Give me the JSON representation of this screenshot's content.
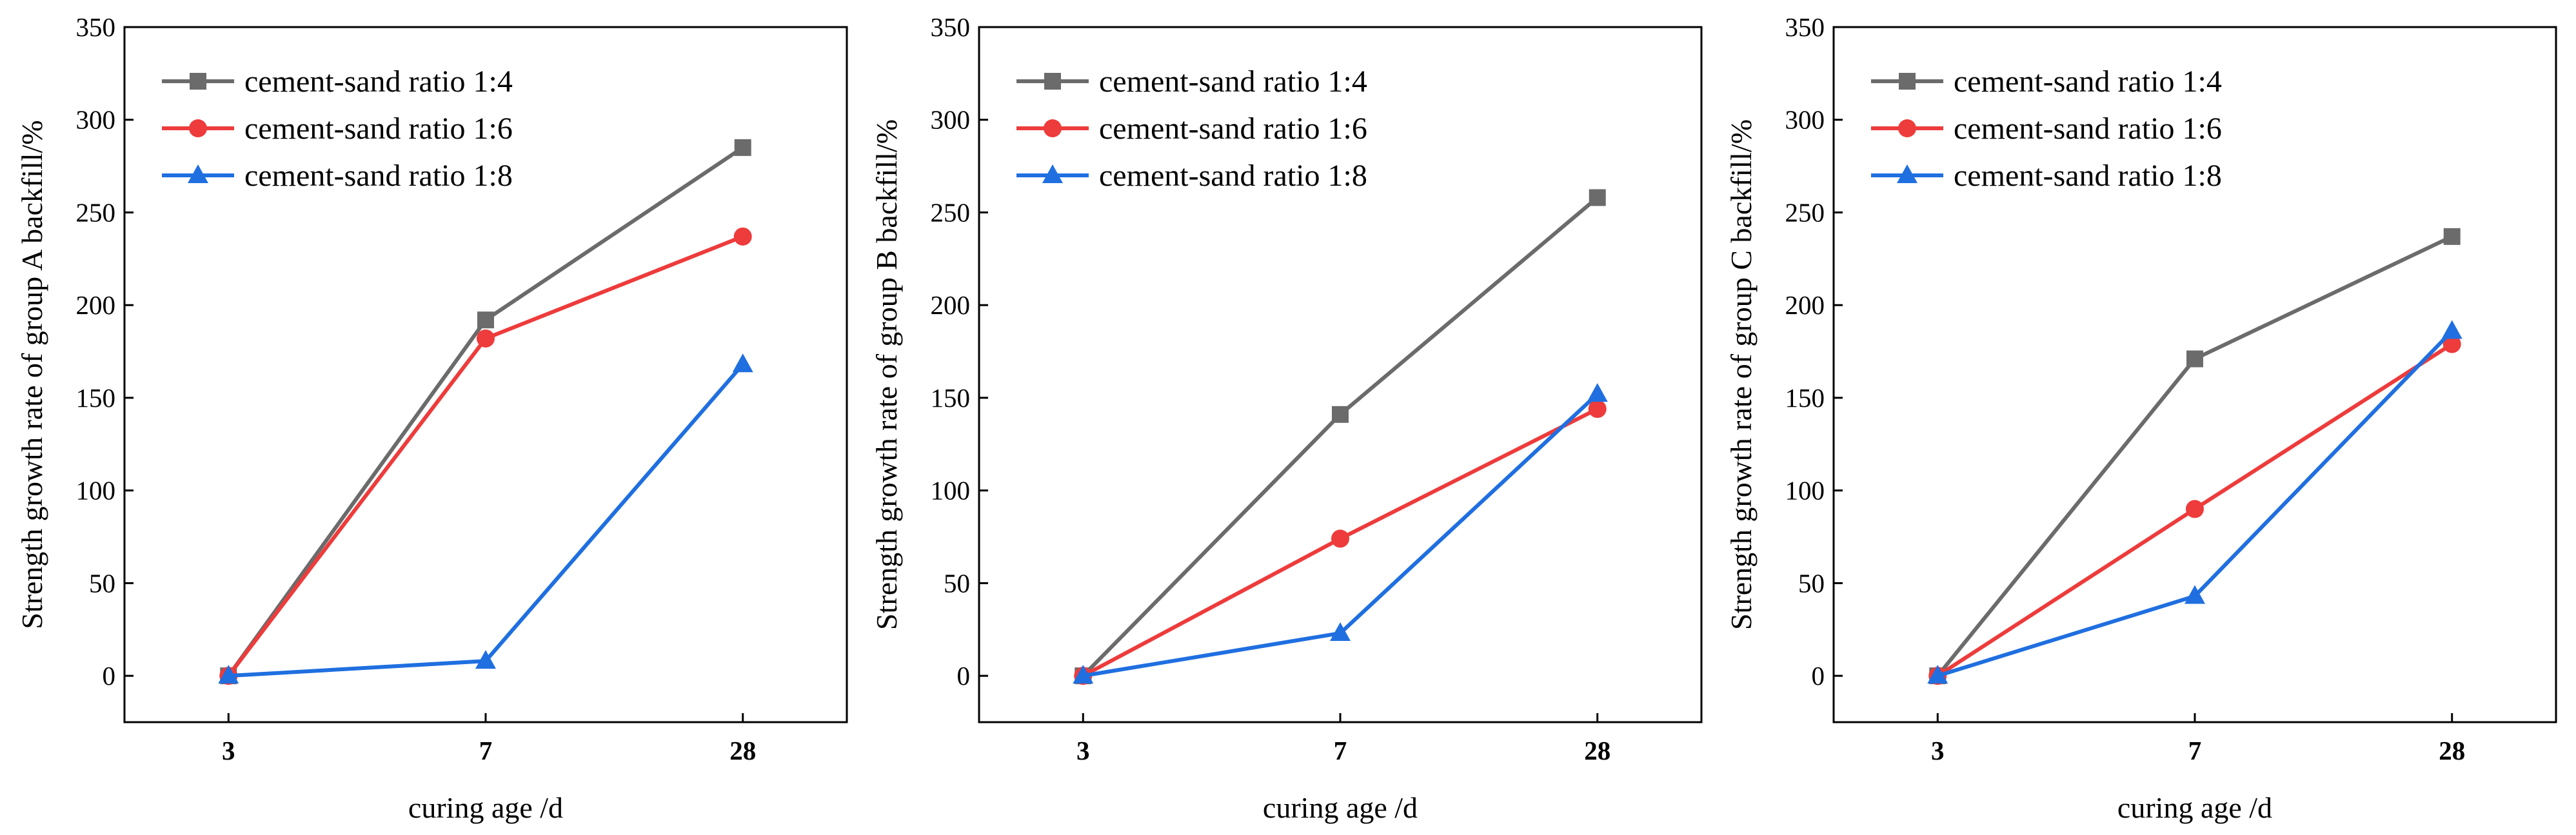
{
  "chart_data": [
    {
      "type": "line",
      "categories": [
        "3",
        "7",
        "28"
      ],
      "xlabel": "curing age /d",
      "ylabel": "Strength growth rate of group A backfill/%",
      "ylim": [
        -25,
        350
      ],
      "yticks": [
        0,
        50,
        100,
        150,
        200,
        250,
        300,
        350
      ],
      "legend_position": "top-left",
      "series": [
        {
          "name": "cement-sand ratio 1:4",
          "color": "#6b6b6b",
          "marker": "square",
          "values": [
            0,
            192,
            285
          ]
        },
        {
          "name": "cement-sand ratio 1:6",
          "color": "#ee3b3b",
          "marker": "circle",
          "values": [
            0,
            182,
            237
          ]
        },
        {
          "name": "cement-sand ratio 1:8",
          "color": "#1f6fe0",
          "marker": "triangle",
          "values": [
            0,
            8,
            168
          ]
        }
      ]
    },
    {
      "type": "line",
      "categories": [
        "3",
        "7",
        "28"
      ],
      "xlabel": "curing age /d",
      "ylabel": "Strength growth rate of group B backfill/%",
      "ylim": [
        -25,
        350
      ],
      "yticks": [
        0,
        50,
        100,
        150,
        200,
        250,
        300,
        350
      ],
      "legend_position": "top-left",
      "series": [
        {
          "name": "cement-sand ratio 1:4",
          "color": "#6b6b6b",
          "marker": "square",
          "values": [
            0,
            141,
            258
          ]
        },
        {
          "name": "cement-sand ratio 1:6",
          "color": "#ee3b3b",
          "marker": "circle",
          "values": [
            0,
            74,
            144
          ]
        },
        {
          "name": "cement-sand ratio 1:8",
          "color": "#1f6fe0",
          "marker": "triangle",
          "values": [
            0,
            23,
            152
          ]
        }
      ]
    },
    {
      "type": "line",
      "categories": [
        "3",
        "7",
        "28"
      ],
      "xlabel": "curing age /d",
      "ylabel": "Strength growth rate of group C backfill/%",
      "ylim": [
        -25,
        350
      ],
      "yticks": [
        0,
        50,
        100,
        150,
        200,
        250,
        300,
        350
      ],
      "legend_position": "top-left",
      "series": [
        {
          "name": "cement-sand ratio 1:4",
          "color": "#6b6b6b",
          "marker": "square",
          "values": [
            0,
            171,
            237
          ]
        },
        {
          "name": "cement-sand ratio 1:6",
          "color": "#ee3b3b",
          "marker": "circle",
          "values": [
            0,
            90,
            179
          ]
        },
        {
          "name": "cement-sand ratio 1:8",
          "color": "#1f6fe0",
          "marker": "triangle",
          "values": [
            0,
            43,
            186
          ]
        }
      ]
    }
  ]
}
